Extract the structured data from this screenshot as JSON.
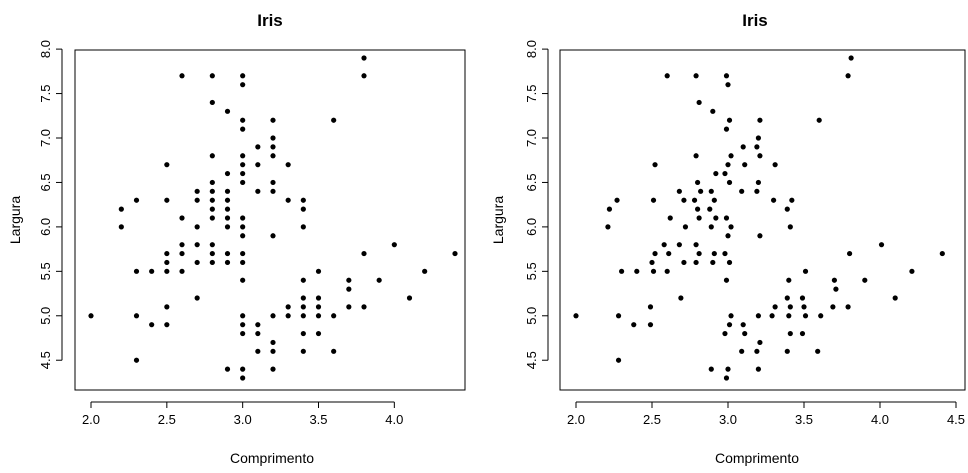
{
  "chart_data": [
    {
      "type": "scatter",
      "title": "Iris",
      "xlabel": "Comprimento",
      "ylabel": "Largura",
      "xlim": [
        2.0,
        4.4
      ],
      "ylim": [
        4.3,
        7.9
      ],
      "xticks": [
        "2.0",
        "2.5",
        "3.0",
        "3.5",
        "4.0"
      ],
      "yticks": [
        "4.5",
        "5.0",
        "5.5",
        "6.0",
        "6.5",
        "7.0",
        "7.5",
        "8.0"
      ],
      "jitter": false,
      "points": [
        [
          2.0,
          5.0
        ],
        [
          2.2,
          6.0
        ],
        [
          2.2,
          6.2
        ],
        [
          2.3,
          4.5
        ],
        [
          2.3,
          5.0
        ],
        [
          2.3,
          5.5
        ],
        [
          2.3,
          6.3
        ],
        [
          2.4,
          4.9
        ],
        [
          2.4,
          5.5
        ],
        [
          2.5,
          4.9
        ],
        [
          2.5,
          5.1
        ],
        [
          2.5,
          5.5
        ],
        [
          2.5,
          5.6
        ],
        [
          2.5,
          5.7
        ],
        [
          2.5,
          6.3
        ],
        [
          2.5,
          6.7
        ],
        [
          2.6,
          5.5
        ],
        [
          2.6,
          5.7
        ],
        [
          2.6,
          5.8
        ],
        [
          2.6,
          6.1
        ],
        [
          2.6,
          7.7
        ],
        [
          2.7,
          5.2
        ],
        [
          2.7,
          5.6
        ],
        [
          2.7,
          5.8
        ],
        [
          2.7,
          6.0
        ],
        [
          2.7,
          6.3
        ],
        [
          2.7,
          6.4
        ],
        [
          2.8,
          5.6
        ],
        [
          2.8,
          5.7
        ],
        [
          2.8,
          5.8
        ],
        [
          2.8,
          6.1
        ],
        [
          2.8,
          6.2
        ],
        [
          2.8,
          6.3
        ],
        [
          2.8,
          6.4
        ],
        [
          2.8,
          6.5
        ],
        [
          2.8,
          6.8
        ],
        [
          2.8,
          7.4
        ],
        [
          2.8,
          7.7
        ],
        [
          2.9,
          4.4
        ],
        [
          2.9,
          5.6
        ],
        [
          2.9,
          5.7
        ],
        [
          2.9,
          6.0
        ],
        [
          2.9,
          6.1
        ],
        [
          2.9,
          6.2
        ],
        [
          2.9,
          6.3
        ],
        [
          2.9,
          6.4
        ],
        [
          2.9,
          6.6
        ],
        [
          2.9,
          7.3
        ],
        [
          3.0,
          4.3
        ],
        [
          3.0,
          4.4
        ],
        [
          3.0,
          4.8
        ],
        [
          3.0,
          4.9
        ],
        [
          3.0,
          5.0
        ],
        [
          3.0,
          5.4
        ],
        [
          3.0,
          5.6
        ],
        [
          3.0,
          5.7
        ],
        [
          3.0,
          5.9
        ],
        [
          3.0,
          6.0
        ],
        [
          3.0,
          6.1
        ],
        [
          3.0,
          6.5
        ],
        [
          3.0,
          6.6
        ],
        [
          3.0,
          6.7
        ],
        [
          3.0,
          6.8
        ],
        [
          3.0,
          7.1
        ],
        [
          3.0,
          7.2
        ],
        [
          3.0,
          7.6
        ],
        [
          3.0,
          7.7
        ],
        [
          3.1,
          4.6
        ],
        [
          3.1,
          4.8
        ],
        [
          3.1,
          4.9
        ],
        [
          3.1,
          6.4
        ],
        [
          3.1,
          6.7
        ],
        [
          3.1,
          6.9
        ],
        [
          3.2,
          4.4
        ],
        [
          3.2,
          4.6
        ],
        [
          3.2,
          4.7
        ],
        [
          3.2,
          5.0
        ],
        [
          3.2,
          5.9
        ],
        [
          3.2,
          6.4
        ],
        [
          3.2,
          6.5
        ],
        [
          3.2,
          6.8
        ],
        [
          3.2,
          6.9
        ],
        [
          3.2,
          7.0
        ],
        [
          3.2,
          7.2
        ],
        [
          3.3,
          5.0
        ],
        [
          3.3,
          5.1
        ],
        [
          3.3,
          6.3
        ],
        [
          3.3,
          6.7
        ],
        [
          3.4,
          4.6
        ],
        [
          3.4,
          4.8
        ],
        [
          3.4,
          5.0
        ],
        [
          3.4,
          5.1
        ],
        [
          3.4,
          5.2
        ],
        [
          3.4,
          5.4
        ],
        [
          3.4,
          6.0
        ],
        [
          3.4,
          6.2
        ],
        [
          3.4,
          6.3
        ],
        [
          3.5,
          4.8
        ],
        [
          3.5,
          5.0
        ],
        [
          3.5,
          5.1
        ],
        [
          3.5,
          5.2
        ],
        [
          3.5,
          5.5
        ],
        [
          3.6,
          4.6
        ],
        [
          3.6,
          5.0
        ],
        [
          3.6,
          7.2
        ],
        [
          3.7,
          5.1
        ],
        [
          3.7,
          5.3
        ],
        [
          3.7,
          5.4
        ],
        [
          3.8,
          5.1
        ],
        [
          3.8,
          5.7
        ],
        [
          3.8,
          7.7
        ],
        [
          3.8,
          7.9
        ],
        [
          3.9,
          5.4
        ],
        [
          4.0,
          5.8
        ],
        [
          4.1,
          5.2
        ],
        [
          4.2,
          5.5
        ],
        [
          4.4,
          5.7
        ]
      ]
    },
    {
      "type": "scatter",
      "title": "Iris",
      "xlabel": "Comprimento",
      "ylabel": "Largura",
      "xlim": [
        2.0,
        4.5
      ],
      "ylim": [
        4.3,
        7.9
      ],
      "xticks": [
        "2.0",
        "2.5",
        "3.0",
        "3.5",
        "4.0",
        "4.5"
      ],
      "yticks": [
        "4.5",
        "5.0",
        "5.5",
        "6.0",
        "6.5",
        "7.0",
        "7.5",
        "8.0"
      ],
      "jitter": true,
      "points": [
        [
          2.0,
          5.0
        ],
        [
          2.21,
          6.0
        ],
        [
          2.22,
          6.2
        ],
        [
          2.28,
          4.5
        ],
        [
          2.28,
          5.0
        ],
        [
          2.3,
          5.5
        ],
        [
          2.27,
          6.3
        ],
        [
          2.38,
          4.9
        ],
        [
          2.4,
          5.5
        ],
        [
          2.49,
          4.9
        ],
        [
          2.49,
          5.1
        ],
        [
          2.51,
          5.5
        ],
        [
          2.5,
          5.6
        ],
        [
          2.52,
          5.7
        ],
        [
          2.51,
          6.3
        ],
        [
          2.52,
          6.7
        ],
        [
          2.6,
          5.5
        ],
        [
          2.61,
          5.7
        ],
        [
          2.58,
          5.8
        ],
        [
          2.62,
          6.1
        ],
        [
          2.6,
          7.7
        ],
        [
          2.69,
          5.2
        ],
        [
          2.71,
          5.6
        ],
        [
          2.68,
          5.8
        ],
        [
          2.72,
          6.0
        ],
        [
          2.71,
          6.3
        ],
        [
          2.68,
          6.4
        ],
        [
          2.79,
          5.6
        ],
        [
          2.81,
          5.7
        ],
        [
          2.79,
          5.8
        ],
        [
          2.81,
          6.1
        ],
        [
          2.8,
          6.2
        ],
        [
          2.78,
          6.3
        ],
        [
          2.82,
          6.4
        ],
        [
          2.8,
          6.5
        ],
        [
          2.79,
          6.8
        ],
        [
          2.81,
          7.4
        ],
        [
          2.79,
          7.7
        ],
        [
          2.89,
          4.4
        ],
        [
          2.9,
          5.6
        ],
        [
          2.91,
          5.7
        ],
        [
          2.89,
          6.0
        ],
        [
          2.92,
          6.1
        ],
        [
          2.88,
          6.2
        ],
        [
          2.91,
          6.3
        ],
        [
          2.89,
          6.4
        ],
        [
          2.92,
          6.6
        ],
        [
          2.9,
          7.3
        ],
        [
          2.99,
          4.3
        ],
        [
          3.0,
          4.4
        ],
        [
          2.98,
          4.8
        ],
        [
          3.01,
          4.9
        ],
        [
          3.02,
          5.0
        ],
        [
          2.99,
          5.4
        ],
        [
          3.01,
          5.6
        ],
        [
          2.98,
          5.7
        ],
        [
          3.0,
          5.9
        ],
        [
          3.02,
          6.0
        ],
        [
          2.99,
          6.1
        ],
        [
          3.01,
          6.5
        ],
        [
          2.98,
          6.6
        ],
        [
          3.0,
          6.7
        ],
        [
          3.02,
          6.8
        ],
        [
          2.99,
          7.1
        ],
        [
          3.01,
          7.2
        ],
        [
          3.0,
          7.6
        ],
        [
          2.99,
          7.7
        ],
        [
          3.09,
          4.6
        ],
        [
          3.11,
          4.8
        ],
        [
          3.1,
          4.9
        ],
        [
          3.09,
          6.4
        ],
        [
          3.11,
          6.7
        ],
        [
          3.1,
          6.9
        ],
        [
          3.2,
          4.4
        ],
        [
          3.19,
          4.6
        ],
        [
          3.21,
          4.7
        ],
        [
          3.2,
          5.0
        ],
        [
          3.21,
          5.9
        ],
        [
          3.19,
          6.4
        ],
        [
          3.2,
          6.5
        ],
        [
          3.21,
          6.8
        ],
        [
          3.19,
          6.9
        ],
        [
          3.2,
          7.0
        ],
        [
          3.21,
          7.2
        ],
        [
          3.29,
          5.0
        ],
        [
          3.31,
          5.1
        ],
        [
          3.3,
          6.3
        ],
        [
          3.31,
          6.7
        ],
        [
          3.39,
          4.6
        ],
        [
          3.41,
          4.8
        ],
        [
          3.4,
          5.0
        ],
        [
          3.41,
          5.1
        ],
        [
          3.39,
          5.2
        ],
        [
          3.4,
          5.4
        ],
        [
          3.41,
          6.0
        ],
        [
          3.39,
          6.2
        ],
        [
          3.42,
          6.3
        ],
        [
          3.49,
          4.8
        ],
        [
          3.51,
          5.0
        ],
        [
          3.5,
          5.1
        ],
        [
          3.49,
          5.2
        ],
        [
          3.51,
          5.5
        ],
        [
          3.59,
          4.6
        ],
        [
          3.61,
          5.0
        ],
        [
          3.6,
          7.2
        ],
        [
          3.69,
          5.1
        ],
        [
          3.71,
          5.3
        ],
        [
          3.7,
          5.4
        ],
        [
          3.79,
          5.1
        ],
        [
          3.8,
          5.7
        ],
        [
          3.79,
          7.7
        ],
        [
          3.81,
          7.9
        ],
        [
          3.9,
          5.4
        ],
        [
          4.01,
          5.8
        ],
        [
          4.1,
          5.2
        ],
        [
          4.21,
          5.5
        ],
        [
          4.41,
          5.7
        ]
      ]
    }
  ]
}
